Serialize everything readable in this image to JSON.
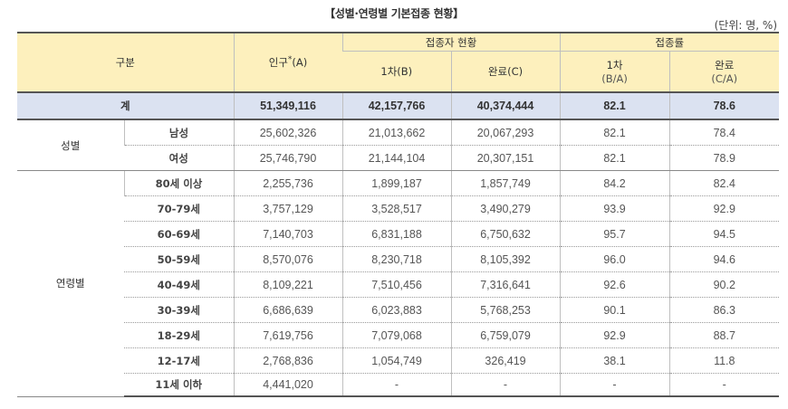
{
  "title": "【성별·연령별 기본접종 현황】",
  "unit": "(단위: 명, %)",
  "header": {
    "category": "구분",
    "population": "인구",
    "population_sup": "*",
    "population_suffix": "(A)",
    "vaccinated_group": "접종자 현황",
    "first_dose": "1차",
    "first_dose_suffix": "(B)",
    "completed": "완료",
    "completed_suffix": "(C)",
    "rate_group": "접종률",
    "rate_first": "1차",
    "rate_first_formula": "(B/A)",
    "rate_completed": "완료",
    "rate_completed_formula": "(C/A)"
  },
  "total": {
    "label": "계",
    "population": "51,349,116",
    "first": "42,157,766",
    "completed": "40,374,444",
    "rate_first": "82.1",
    "rate_completed": "78.6"
  },
  "sex_group": {
    "label": "성별",
    "rows": [
      {
        "sub": "남성",
        "population": "25,602,326",
        "first": "21,013,662",
        "completed": "20,067,293",
        "rate_first": "82.1",
        "rate_completed": "78.4"
      },
      {
        "sub": "여성",
        "population": "25,746,790",
        "first": "21,144,104",
        "completed": "20,307,151",
        "rate_first": "82.1",
        "rate_completed": "78.9"
      }
    ]
  },
  "age_group": {
    "label": "연령별",
    "rows": [
      {
        "sub": "80세 이상",
        "population": "2,255,736",
        "first": "1,899,187",
        "completed": "1,857,749",
        "rate_first": "84.2",
        "rate_completed": "82.4"
      },
      {
        "sub": "70-79세",
        "population": "3,757,129",
        "first": "3,528,517",
        "completed": "3,490,279",
        "rate_first": "93.9",
        "rate_completed": "92.9"
      },
      {
        "sub": "60-69세",
        "population": "7,140,703",
        "first": "6,831,188",
        "completed": "6,750,632",
        "rate_first": "95.7",
        "rate_completed": "94.5"
      },
      {
        "sub": "50-59세",
        "population": "8,570,076",
        "first": "8,230,718",
        "completed": "8,105,392",
        "rate_first": "96.0",
        "rate_completed": "94.6"
      },
      {
        "sub": "40-49세",
        "population": "8,109,221",
        "first": "7,510,456",
        "completed": "7,316,641",
        "rate_first": "92.6",
        "rate_completed": "90.2"
      },
      {
        "sub": "30-39세",
        "population": "6,686,639",
        "first": "6,023,883",
        "completed": "5,768,253",
        "rate_first": "90.1",
        "rate_completed": "86.3"
      },
      {
        "sub": "18-29세",
        "population": "7,619,756",
        "first": "7,079,068",
        "completed": "6,759,079",
        "rate_first": "92.9",
        "rate_completed": "88.7"
      },
      {
        "sub": "12-17세",
        "population": "2,768,836",
        "first": "1,054,749",
        "completed": "326,419",
        "rate_first": "38.1",
        "rate_completed": "11.8"
      },
      {
        "sub": "11세 이하",
        "population": "4,441,020",
        "first": "-",
        "completed": "-",
        "rate_first": "-",
        "rate_completed": "-"
      }
    ]
  }
}
